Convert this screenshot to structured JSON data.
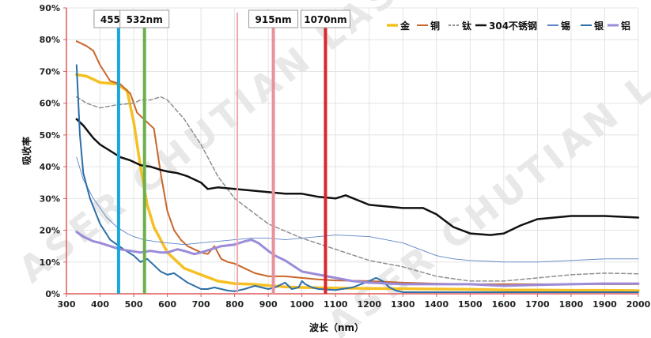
{
  "watermark": "ASER CHUTIAN LASER",
  "chart_data": {
    "type": "line",
    "title": "",
    "xlabel": "波长（nm）",
    "ylabel": "吸收率",
    "xlim": [
      300,
      2000
    ],
    "ylim": [
      0,
      90
    ],
    "x_ticks": [
      300,
      400,
      500,
      600,
      700,
      800,
      900,
      1000,
      1100,
      1200,
      1300,
      1400,
      1500,
      1600,
      1700,
      1800,
      1900,
      2000
    ],
    "y_ticks": [
      0,
      10,
      20,
      30,
      40,
      50,
      60,
      70,
      80,
      90
    ],
    "y_tick_labels": [
      "0%",
      "10%",
      "20%",
      "30%",
      "40%",
      "50%",
      "60%",
      "70%",
      "80%",
      "90%"
    ],
    "grid": true,
    "legend_position": "top-right",
    "wavelength_markers": [
      {
        "x": 455,
        "label": "455nm",
        "color": "#1aa7dc",
        "labeled": true
      },
      {
        "x": 532,
        "label": "532nm",
        "color": "#6ab04c",
        "labeled": true
      },
      {
        "x": 808,
        "label": "",
        "color": "#f2a7ae",
        "labeled": false
      },
      {
        "x": 915,
        "label": "915nm",
        "color": "#e8929a",
        "labeled": true
      },
      {
        "x": 1070,
        "label": "1070nm",
        "color": "#d9262b",
        "labeled": true
      }
    ],
    "series": [
      {
        "name": "金",
        "color": "#f5c023",
        "width": 3.5,
        "dash": "",
        "x": [
          330,
          360,
          400,
          450,
          480,
          500,
          520,
          540,
          560,
          580,
          600,
          650,
          700,
          750,
          800,
          850,
          900,
          950,
          1000,
          1100,
          1200,
          1300,
          1400,
          1500,
          1600,
          1700,
          1800,
          1900,
          2000
        ],
        "y": [
          69,
          68.5,
          66.5,
          66,
          64,
          54,
          40,
          28,
          21,
          17,
          13,
          8,
          6,
          4,
          3.2,
          3,
          2.6,
          2.2,
          2,
          1.8,
          1.7,
          1.6,
          1.5,
          1.4,
          1.2,
          1.2,
          1.1,
          1.1,
          1
        ]
      },
      {
        "name": "铜",
        "color": "#c9672a",
        "width": 2,
        "dash": "",
        "x": [
          330,
          360,
          380,
          400,
          430,
          460,
          490,
          510,
          530,
          560,
          580,
          600,
          620,
          640,
          660,
          680,
          700,
          720,
          740,
          760,
          780,
          800,
          830,
          860,
          900,
          950,
          1000,
          1050,
          1100,
          1200,
          1300,
          1400,
          1500,
          1600,
          1700,
          1800,
          1900,
          2000
        ],
        "y": [
          79.5,
          78,
          76.5,
          72,
          67,
          66,
          63,
          57,
          55,
          52,
          38,
          26,
          20,
          17,
          15,
          14,
          13,
          12.5,
          15,
          11,
          10,
          9.5,
          8,
          6.5,
          5.5,
          5.5,
          5,
          4.5,
          4.2,
          4,
          3.5,
          3.2,
          3,
          3,
          3,
          3,
          3,
          3
        ]
      },
      {
        "name": "钛",
        "color": "#8f8f8f",
        "width": 1.5,
        "dash": "5,3",
        "x": [
          330,
          360,
          400,
          450,
          500,
          520,
          550,
          580,
          600,
          650,
          700,
          750,
          800,
          850,
          900,
          1000,
          1100,
          1200,
          1300,
          1400,
          1500,
          1600,
          1700,
          1800,
          1900,
          2000
        ],
        "y": [
          62,
          60,
          58.5,
          59.5,
          60,
          61,
          61,
          62,
          61,
          55,
          47,
          37,
          30,
          26,
          22,
          17.5,
          14,
          10.5,
          8.5,
          5.5,
          4,
          4,
          5,
          6,
          6.5,
          6.3
        ]
      },
      {
        "name": "304不锈钢",
        "color": "#111111",
        "width": 2.5,
        "dash": "",
        "x": [
          330,
          350,
          380,
          400,
          430,
          460,
          490,
          520,
          550,
          580,
          600,
          630,
          660,
          700,
          720,
          750,
          800,
          850,
          900,
          950,
          1000,
          1050,
          1100,
          1130,
          1200,
          1250,
          1300,
          1360,
          1400,
          1450,
          1500,
          1560,
          1600,
          1650,
          1700,
          1800,
          1900,
          2000
        ],
        "y": [
          55,
          53,
          49,
          47,
          45,
          43,
          42,
          40.5,
          40,
          39,
          38.5,
          38,
          37,
          35,
          33,
          33.5,
          33,
          32.5,
          32,
          31.5,
          31.5,
          30.5,
          30,
          31,
          28,
          27.5,
          27,
          27,
          25,
          21,
          19,
          18.5,
          19,
          21.5,
          23.5,
          24.5,
          24.5,
          24
        ]
      },
      {
        "name": "锡",
        "color": "#5b84c4",
        "width": 0.9,
        "dash": "",
        "x": [
          330,
          350,
          380,
          400,
          420,
          450,
          480,
          500,
          530,
          560,
          600,
          650,
          700,
          750,
          800,
          850,
          900,
          950,
          1000,
          1100,
          1200,
          1300,
          1350,
          1400,
          1450,
          1500,
          1600,
          1700,
          1800,
          1900,
          2000
        ],
        "y": [
          43,
          36,
          30,
          27,
          24,
          21,
          19,
          18,
          17,
          16.5,
          16,
          15.5,
          16,
          16.5,
          17,
          17.5,
          17.5,
          17,
          17.5,
          18.5,
          18,
          16,
          14,
          12,
          11,
          10.5,
          10,
          10,
          10.5,
          11,
          11
        ]
      },
      {
        "name": "银",
        "color": "#2b6ea8",
        "width": 2,
        "dash": "",
        "x": [
          330,
          340,
          350,
          370,
          400,
          430,
          450,
          470,
          500,
          520,
          540,
          560,
          580,
          600,
          620,
          640,
          660,
          680,
          700,
          720,
          740,
          760,
          780,
          800,
          830,
          860,
          880,
          900,
          920,
          950,
          970,
          990,
          1000,
          1010,
          1030,
          1050,
          1100,
          1150,
          1200,
          1220,
          1240,
          1260,
          1280,
          1300,
          1400,
          1500,
          1600,
          1700,
          1800,
          1900,
          2000
        ],
        "y": [
          72,
          50,
          38,
          30,
          22,
          17,
          15.5,
          14,
          12,
          10,
          11,
          9,
          7,
          6,
          6.5,
          5,
          3.5,
          2.5,
          1.5,
          1.5,
          2,
          1.5,
          1,
          0.8,
          1.5,
          2.5,
          2,
          1.5,
          2,
          3.5,
          1.5,
          2,
          4,
          3,
          2,
          1.5,
          1.2,
          2,
          4,
          5,
          4,
          2,
          1,
          0.5,
          0.5,
          0.5,
          0.5,
          0.5,
          0.5,
          0.5,
          0.5
        ]
      },
      {
        "name": "铝",
        "color": "#9b8bd8",
        "width": 3,
        "dash": "",
        "x": [
          330,
          350,
          380,
          400,
          430,
          460,
          490,
          520,
          550,
          580,
          600,
          630,
          650,
          680,
          700,
          730,
          760,
          800,
          830,
          850,
          870,
          900,
          920,
          950,
          1000,
          1050,
          1100,
          1150,
          1200,
          1300,
          1400,
          1500,
          1600,
          1700,
          1800,
          1900,
          2000
        ],
        "y": [
          19.5,
          18,
          16.5,
          16,
          15,
          14,
          13.5,
          13,
          13.5,
          13,
          13,
          14,
          13.5,
          12.5,
          13,
          14,
          15,
          15.5,
          16.5,
          17,
          16,
          13.5,
          12,
          10.5,
          7,
          6,
          5,
          4,
          3.5,
          3,
          3,
          3,
          2.5,
          2.8,
          3,
          3.2,
          3.2
        ]
      }
    ]
  }
}
